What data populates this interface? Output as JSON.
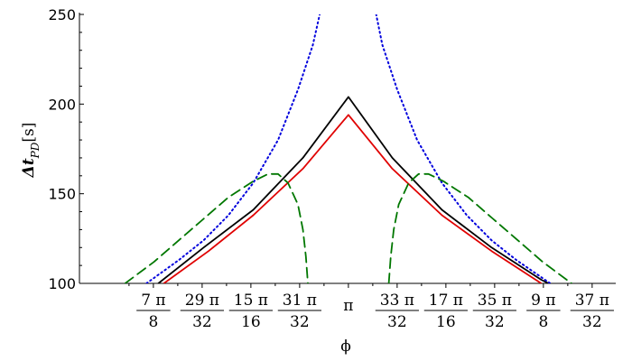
{
  "chart_data": {
    "type": "line",
    "xlabel": "ϕ",
    "ylabel": {
      "symbol": "Δt",
      "subscript": "PD",
      "unit": "[s]"
    },
    "xlim": [
      2.6,
      3.68
    ],
    "ylim": [
      100,
      250
    ],
    "grid": false,
    "legend": "none",
    "y_ticks": [
      {
        "value": 100,
        "label": "100"
      },
      {
        "value": 150,
        "label": "150"
      },
      {
        "value": 200,
        "label": "200"
      },
      {
        "value": 250,
        "label": "250"
      }
    ],
    "x_ticks": [
      {
        "value": 2.748894,
        "num": "7 π",
        "den": "8"
      },
      {
        "value": 2.847068,
        "num": "29 π",
        "den": "32"
      },
      {
        "value": 2.945243,
        "num": "15 π",
        "den": "16"
      },
      {
        "value": 3.043418,
        "num": "31 π",
        "den": "32"
      },
      {
        "value": 3.141593,
        "label": "π"
      },
      {
        "value": 3.239767,
        "num": "33 π",
        "den": "32"
      },
      {
        "value": 3.337942,
        "num": "17 π",
        "den": "16"
      },
      {
        "value": 3.436117,
        "num": "35 π",
        "den": "32"
      },
      {
        "value": 3.534292,
        "num": "9 π",
        "den": "8"
      },
      {
        "value": 3.632467,
        "num": "37 π",
        "den": "32"
      }
    ],
    "series": [
      {
        "color": "#e00000",
        "style": "solid",
        "x": [
          2.77,
          2.86,
          2.95,
          3.05,
          3.1416,
          3.23,
          3.33,
          3.43,
          3.53
        ],
        "y": [
          100,
          118,
          138,
          164,
          194,
          164,
          138,
          118,
          100
        ]
      },
      {
        "color": "#000000",
        "style": "solid",
        "x": [
          2.759,
          2.85,
          2.95,
          3.05,
          3.1416,
          3.23,
          3.33,
          3.43,
          3.53,
          3.545
        ],
        "y": [
          100,
          120,
          141,
          170,
          204,
          170,
          141,
          120,
          102,
          100
        ]
      },
      {
        "color": "#0000dd",
        "style": "dotted",
        "left": {
          "x": [
            2.735,
            2.8,
            2.85,
            2.9,
            2.95,
            3.0,
            3.04,
            3.07,
            3.1
          ],
          "y": [
            100,
            113,
            124,
            138,
            156,
            180,
            208,
            233,
            270
          ]
        },
        "right": {
          "x": [
            3.183,
            3.21,
            3.24,
            3.28,
            3.33,
            3.38,
            3.43,
            3.48,
            3.548
          ],
          "y": [
            270,
            233,
            208,
            180,
            156,
            138,
            124,
            113,
            100
          ]
        }
      },
      {
        "color": "#007700",
        "style": "dashed",
        "left": {
          "x": [
            2.692,
            2.75,
            2.8,
            2.85,
            2.9,
            2.95,
            2.98,
            3.0,
            3.02,
            3.04,
            3.05,
            3.056,
            3.06
          ],
          "y": [
            100,
            112,
            124,
            136,
            148,
            157,
            161,
            161,
            156,
            144,
            130,
            115,
            100
          ]
        },
        "right": {
          "x": [
            3.223,
            3.227,
            3.233,
            3.243,
            3.263,
            3.283,
            3.303,
            3.333,
            3.383,
            3.433,
            3.483,
            3.533,
            3.591
          ],
          "y": [
            100,
            115,
            130,
            144,
            156,
            161,
            161,
            157,
            148,
            136,
            124,
            112,
            100
          ]
        }
      }
    ]
  }
}
